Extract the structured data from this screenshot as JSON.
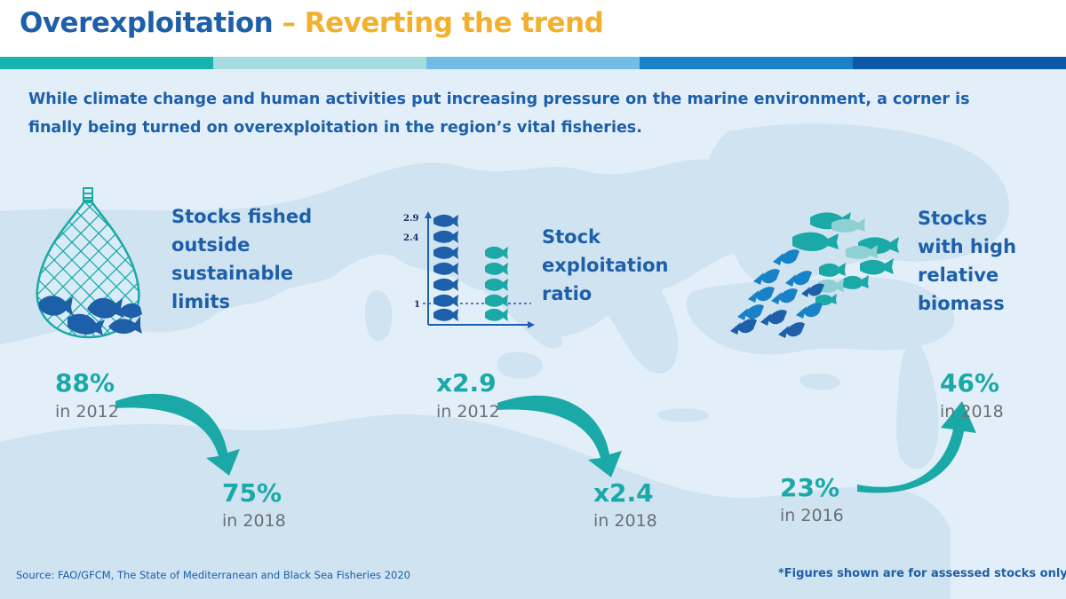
{
  "title": {
    "part1": "Overexploitation",
    "dash": " – ",
    "part2": "Reverting the trend"
  },
  "colors": {
    "title_blue": "#1d5fa8",
    "title_yellow": "#f2b02c",
    "teal": "#1aa9a7",
    "panel_bg": "#e3eff8",
    "map": "#cfe3f1",
    "stripe": [
      "#15b2b0",
      "#a6dbe0",
      "#72bde3",
      "#1981c7",
      "#0b5aa8"
    ]
  },
  "intro": "While climate change and human activities put increasing pressure on the marine environment, a corner is finally being turned on overexploitation in the region’s vital fisheries.",
  "indicators": [
    {
      "icon": "fishing-net-icon",
      "caption": "Stocks fished\noutside\nsustainable\nlimits",
      "start_value": "88%",
      "start_year": "in 2012",
      "end_value": "75%",
      "end_year": "in 2018",
      "trend": "down"
    },
    {
      "icon": "exploitation-ratio-chart-icon",
      "caption": "Stock\nexploitation\nratio",
      "start_value": "x2.9",
      "start_year": "in 2012",
      "end_value": "x2.4",
      "end_year": "in 2018",
      "trend": "down"
    },
    {
      "icon": "fish-school-icon",
      "caption": "Stocks\nwith high\nrelative\nbiomass",
      "start_value": "23%",
      "start_year": "in 2016",
      "end_value": "46%",
      "end_year": "in 2018",
      "trend": "up"
    }
  ],
  "ratio_chart_labels": {
    "y_top": "2.9",
    "y_mid": "2.4",
    "y_ref": "1"
  },
  "source": "Source: FAO/GFCM, The State of Mediterranean and Black Sea Fisheries 2020",
  "footnote": "*Figures shown are for assessed stocks only."
}
